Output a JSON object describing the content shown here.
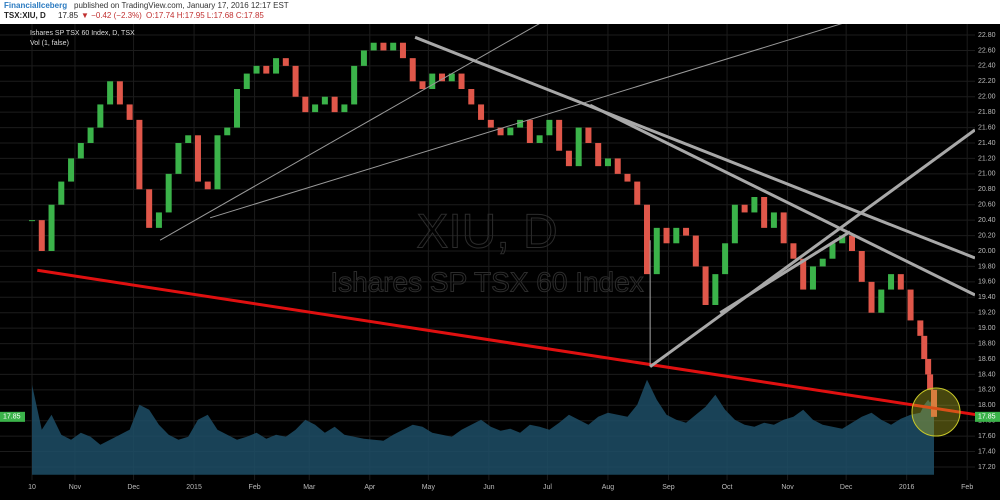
{
  "chart_data": {
    "type": "candlestick",
    "publisher": "FinancialIceberg",
    "published": "published on TradingView.com, January 17, 2016 12:17 EST",
    "symbol": "TSX:XIU, D",
    "symbol_price": "17.85",
    "symbol_change": "▼ −0.42 (−2.3%)",
    "symbol_ohlc": "O:17.74 H:17.95 L:17.68 C:17.85",
    "legend_title": "Ishares SP TSX 60 Index, D, TSX",
    "volume_label": "Vol (1, false)",
    "watermark": "XIU, D",
    "watermark_subtitle": "Ishares SP TSX 60 Index",
    "x": [
      0,
      5,
      10,
      15,
      20,
      25,
      30,
      35,
      40,
      45,
      50,
      55,
      60,
      65,
      70,
      75,
      80,
      85,
      90,
      95,
      100,
      105,
      110,
      115,
      120,
      125,
      130,
      135,
      140,
      145,
      150,
      155,
      160,
      165,
      170,
      175,
      180,
      185,
      190,
      195,
      200,
      205,
      210,
      215,
      220,
      225,
      230,
      235,
      240,
      245,
      250,
      255,
      260,
      265,
      270,
      275,
      280,
      285,
      290,
      295,
      300,
      305,
      310,
      315,
      320,
      325,
      330,
      335,
      340,
      345,
      350,
      355,
      360,
      365,
      370,
      375,
      380,
      385,
      390,
      395,
      400,
      405,
      410,
      415,
      420,
      425,
      430,
      435,
      440,
      445,
      450,
      455,
      457,
      459,
      460,
      462
    ],
    "values": [
      20.4,
      20.0,
      20.6,
      20.9,
      21.2,
      21.4,
      21.6,
      21.9,
      22.2,
      21.9,
      21.7,
      20.8,
      20.3,
      20.5,
      21.0,
      21.4,
      21.5,
      20.9,
      20.8,
      21.5,
      21.6,
      22.1,
      22.3,
      22.4,
      22.3,
      22.5,
      22.4,
      22.0,
      21.8,
      21.9,
      22.0,
      21.8,
      21.9,
      22.4,
      22.6,
      22.7,
      22.6,
      22.7,
      22.5,
      22.2,
      22.1,
      22.3,
      22.2,
      22.3,
      22.1,
      21.9,
      21.7,
      21.6,
      21.5,
      21.6,
      21.7,
      21.4,
      21.5,
      21.7,
      21.3,
      21.1,
      21.6,
      21.4,
      21.1,
      21.2,
      21.0,
      20.9,
      20.6,
      19.7,
      20.3,
      20.1,
      20.3,
      20.2,
      19.8,
      19.3,
      19.7,
      20.1,
      20.6,
      20.5,
      20.7,
      20.3,
      20.5,
      20.1,
      19.9,
      19.5,
      19.8,
      19.9,
      20.1,
      20.2,
      20.0,
      19.6,
      19.2,
      19.5,
      19.7,
      19.5,
      19.1,
      18.9,
      18.6,
      18.4,
      18.2,
      17.85
    ],
    "volume": [
      90,
      45,
      60,
      40,
      35,
      42,
      38,
      30,
      35,
      40,
      45,
      70,
      65,
      50,
      40,
      35,
      38,
      55,
      60,
      45,
      40,
      35,
      38,
      42,
      36,
      40,
      38,
      45,
      55,
      50,
      42,
      48,
      40,
      38,
      36,
      35,
      34,
      40,
      45,
      50,
      48,
      42,
      40,
      38,
      45,
      50,
      55,
      48,
      44,
      46,
      42,
      50,
      48,
      45,
      52,
      60,
      55,
      50,
      58,
      62,
      60,
      58,
      70,
      95,
      75,
      60,
      55,
      52,
      60,
      68,
      80,
      65,
      55,
      50,
      48,
      52,
      50,
      55,
      58,
      65,
      55,
      50,
      48,
      46,
      52,
      58,
      62,
      55,
      50,
      56,
      60,
      62,
      70,
      75,
      72,
      80
    ],
    "up_color": "#3bb34a",
    "down_color": "#e0574a",
    "volume_color": "#1d4e66",
    "xlim": [
      -16.4,
      483
    ],
    "ylim": [
      17.1,
      22.9
    ],
    "xticks": [
      {
        "value": 0,
        "label": "10"
      },
      {
        "value": 22,
        "label": "Nov"
      },
      {
        "value": 52,
        "label": "Dec"
      },
      {
        "value": 83,
        "label": "2015"
      },
      {
        "value": 114,
        "label": "Feb"
      },
      {
        "value": 142,
        "label": "Mar"
      },
      {
        "value": 173,
        "label": "Apr"
      },
      {
        "value": 203,
        "label": "May"
      },
      {
        "value": 234,
        "label": "Jun"
      },
      {
        "value": 264,
        "label": "Jul"
      },
      {
        "value": 295,
        "label": "Aug"
      },
      {
        "value": 326,
        "label": "Sep"
      },
      {
        "value": 356,
        "label": "Oct"
      },
      {
        "value": 387,
        "label": "Nov"
      },
      {
        "value": 417,
        "label": "Dec"
      },
      {
        "value": 448,
        "label": "2016"
      },
      {
        "value": 479,
        "label": "Feb"
      }
    ],
    "yticks": [
      {
        "value": 17.2,
        "label": "17.20"
      },
      {
        "value": 17.4,
        "label": "17.40"
      },
      {
        "value": 17.6,
        "label": "17.60"
      },
      {
        "value": 17.8,
        "label": "17.80"
      },
      {
        "value": 18.0,
        "label": "18.00"
      },
      {
        "value": 18.2,
        "label": "18.20"
      },
      {
        "value": 18.4,
        "label": "18.40"
      },
      {
        "value": 18.6,
        "label": "18.60"
      },
      {
        "value": 18.8,
        "label": "18.80"
      },
      {
        "value": 19.0,
        "label": "19.00"
      },
      {
        "value": 19.2,
        "label": "19.20"
      },
      {
        "value": 19.4,
        "label": "19.40"
      },
      {
        "value": 19.6,
        "label": "19.60"
      },
      {
        "value": 19.8,
        "label": "19.80"
      },
      {
        "value": 20.0,
        "label": "20.00"
      },
      {
        "value": 20.2,
        "label": "20.20"
      },
      {
        "value": 20.4,
        "label": "20.40"
      },
      {
        "value": 20.6,
        "label": "20.60"
      },
      {
        "value": 20.8,
        "label": "20.80"
      },
      {
        "value": 21.0,
        "label": "21.00"
      },
      {
        "value": 21.2,
        "label": "21.20"
      },
      {
        "value": 21.4,
        "label": "21.40"
      },
      {
        "value": 21.6,
        "label": "21.60"
      },
      {
        "value": 21.8,
        "label": "21.80"
      },
      {
        "value": 22.0,
        "label": "22.00"
      },
      {
        "value": 22.2,
        "label": "22.20"
      },
      {
        "value": 22.4,
        "label": "22.40"
      },
      {
        "value": 22.6,
        "label": "22.60"
      },
      {
        "value": 22.8,
        "label": "22.80"
      }
    ],
    "grid": true,
    "last_price": 17.85,
    "last_price_color": "#3bb34a",
    "trendlines": [
      {
        "color": "#e01010",
        "width": 3,
        "points": [
          [
            2.7,
            19.75
          ],
          [
            496,
            17.83
          ]
        ]
      },
      {
        "color": "#9a9a9a",
        "width": 1,
        "points": [
          [
            65.6,
            20.14
          ],
          [
            262.8,
            22.99
          ]
        ]
      },
      {
        "color": "#9a9a9a",
        "width": 1,
        "points": [
          [
            91.2,
            20.43
          ],
          [
            424,
            23.02
          ]
        ]
      },
      {
        "color": "#a8a8a8",
        "width": 3,
        "points": [
          [
            196.2,
            22.77
          ],
          [
            483,
            19.91
          ]
        ]
      },
      {
        "color": "#a8a8a8",
        "width": 3,
        "points": [
          [
            285.9,
            21.89
          ],
          [
            483,
            19.43
          ]
        ]
      },
      {
        "color": "#a8a8a8",
        "width": 3,
        "points": [
          [
            316.6,
            18.5
          ],
          [
            483,
            21.57
          ]
        ]
      },
      {
        "color": "#a8a8a8",
        "width": 3,
        "points": [
          [
            352.5,
            19.2
          ],
          [
            419,
            20.25
          ]
        ]
      },
      {
        "color": "#a8a8a8",
        "width": 1,
        "points": [
          [
            316.6,
            20.14
          ],
          [
            316.6,
            18.5
          ]
        ]
      }
    ]
  }
}
